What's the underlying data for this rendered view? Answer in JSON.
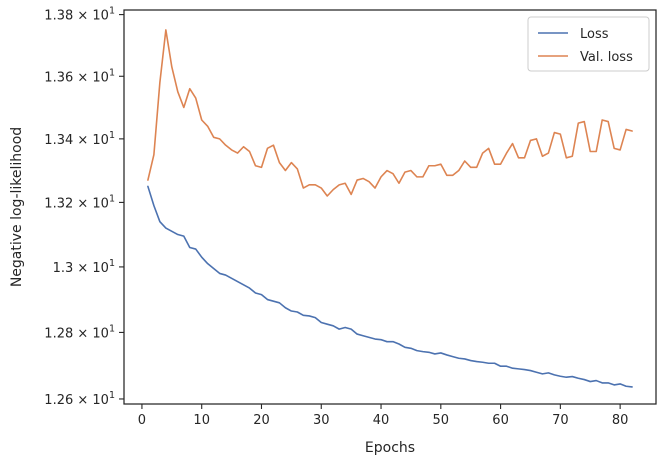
{
  "chart_data": {
    "type": "line",
    "xlabel": "Epochs",
    "ylabel": "Negative log-likelihood",
    "xlim": [
      -3,
      86
    ],
    "ylim": [
      12.585,
      13.815
    ],
    "y_scale": "log",
    "grid": false,
    "legend_position": "top-right",
    "x_ticks": [
      0,
      10,
      20,
      30,
      40,
      50,
      60,
      70,
      80
    ],
    "x_tick_labels": [
      "0",
      "10",
      "20",
      "30",
      "40",
      "50",
      "60",
      "70",
      "80"
    ],
    "y_ticks": [
      12.6,
      12.8,
      13.0,
      13.2,
      13.4,
      13.6,
      13.8
    ],
    "y_tick_labels": [
      {
        "mantissa": "1.26",
        "exponent": "1"
      },
      {
        "mantissa": "1.28",
        "exponent": "1"
      },
      {
        "mantissa": "1.3",
        "exponent": "1"
      },
      {
        "mantissa": "1.32",
        "exponent": "1"
      },
      {
        "mantissa": "1.34",
        "exponent": "1"
      },
      {
        "mantissa": "1.36",
        "exponent": "1"
      },
      {
        "mantissa": "1.38",
        "exponent": "1"
      }
    ],
    "series": [
      {
        "name": "Loss",
        "color": "#4c72b0",
        "x": [
          1,
          2,
          3,
          4,
          5,
          6,
          7,
          8,
          9,
          10,
          11,
          12,
          13,
          14,
          15,
          16,
          17,
          18,
          19,
          20,
          21,
          22,
          23,
          24,
          25,
          26,
          27,
          28,
          29,
          30,
          31,
          32,
          33,
          34,
          35,
          36,
          37,
          38,
          39,
          40,
          41,
          42,
          43,
          44,
          45,
          46,
          47,
          48,
          49,
          50,
          51,
          52,
          53,
          54,
          55,
          56,
          57,
          58,
          59,
          60,
          61,
          62,
          63,
          64,
          65,
          66,
          67,
          68,
          69,
          70,
          71,
          72,
          73,
          74,
          75,
          76,
          77,
          78,
          79,
          80,
          81,
          82
        ],
        "values": [
          13.25,
          13.19,
          13.14,
          13.12,
          13.11,
          13.1,
          13.095,
          13.06,
          13.055,
          13.03,
          13.01,
          12.995,
          12.98,
          12.975,
          12.965,
          12.955,
          12.945,
          12.935,
          12.92,
          12.915,
          12.9,
          12.895,
          12.89,
          12.875,
          12.865,
          12.862,
          12.852,
          12.85,
          12.845,
          12.83,
          12.825,
          12.82,
          12.81,
          12.815,
          12.81,
          12.795,
          12.79,
          12.785,
          12.78,
          12.778,
          12.772,
          12.772,
          12.765,
          12.755,
          12.752,
          12.745,
          12.742,
          12.74,
          12.735,
          12.738,
          12.732,
          12.727,
          12.722,
          12.72,
          12.715,
          12.712,
          12.71,
          12.707,
          12.707,
          12.698,
          12.698,
          12.692,
          12.69,
          12.688,
          12.685,
          12.68,
          12.675,
          12.678,
          12.672,
          12.668,
          12.665,
          12.667,
          12.662,
          12.658,
          12.652,
          12.655,
          12.648,
          12.648,
          12.642,
          12.645,
          12.638,
          12.636
        ]
      },
      {
        "name": "Val. loss",
        "color": "#dd8452",
        "x": [
          1,
          2,
          3,
          4,
          5,
          6,
          7,
          8,
          9,
          10,
          11,
          12,
          13,
          14,
          15,
          16,
          17,
          18,
          19,
          20,
          21,
          22,
          23,
          24,
          25,
          26,
          27,
          28,
          29,
          30,
          31,
          32,
          33,
          34,
          35,
          36,
          37,
          38,
          39,
          40,
          41,
          42,
          43,
          44,
          45,
          46,
          47,
          48,
          49,
          50,
          51,
          52,
          53,
          54,
          55,
          56,
          57,
          58,
          59,
          60,
          61,
          62,
          63,
          64,
          65,
          66,
          67,
          68,
          69,
          70,
          71,
          72,
          73,
          74,
          75,
          76,
          77,
          78,
          79,
          80,
          81,
          82
        ],
        "values": [
          13.27,
          13.35,
          13.58,
          13.75,
          13.63,
          13.55,
          13.5,
          13.56,
          13.53,
          13.46,
          13.44,
          13.405,
          13.4,
          13.38,
          13.365,
          13.355,
          13.375,
          13.36,
          13.315,
          13.31,
          13.37,
          13.38,
          13.325,
          13.3,
          13.325,
          13.305,
          13.245,
          13.255,
          13.255,
          13.245,
          13.22,
          13.24,
          13.255,
          13.26,
          13.225,
          13.27,
          13.275,
          13.265,
          13.245,
          13.28,
          13.3,
          13.29,
          13.26,
          13.295,
          13.3,
          13.28,
          13.28,
          13.315,
          13.315,
          13.32,
          13.285,
          13.285,
          13.3,
          13.33,
          13.31,
          13.31,
          13.355,
          13.37,
          13.32,
          13.32,
          13.355,
          13.385,
          13.34,
          13.34,
          13.395,
          13.4,
          13.345,
          13.355,
          13.42,
          13.415,
          13.34,
          13.345,
          13.45,
          13.455,
          13.36,
          13.36,
          13.46,
          13.455,
          13.37,
          13.365,
          13.43,
          13.425
        ]
      }
    ]
  }
}
